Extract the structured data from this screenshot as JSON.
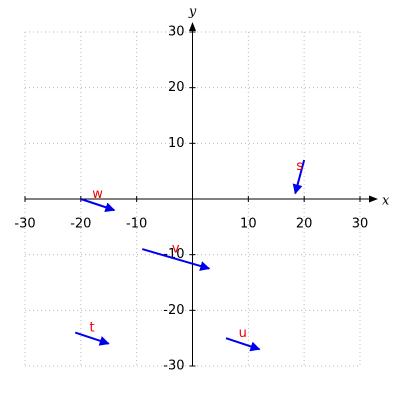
{
  "chart_data": {
    "type": "vector",
    "x_label": "x",
    "y_label": "y",
    "xlim": [
      -30,
      30
    ],
    "ylim": [
      -30,
      30
    ],
    "xticks": [
      -30,
      -20,
      -10,
      10,
      20,
      30
    ],
    "yticks": [
      -30,
      -20,
      -10,
      10,
      20,
      30
    ],
    "grid": true,
    "color": "#0000ee",
    "label_color": "#ee0000",
    "vectors": [
      {
        "label": "s",
        "x0": 20,
        "y0": 7,
        "x1": 18.4,
        "y1": 1
      },
      {
        "label": "w",
        "x0": -20,
        "y0": 0,
        "x1": -14,
        "y1": -2
      },
      {
        "label": "v",
        "x0": -9,
        "y0": -9,
        "x1": 3,
        "y1": -12.5
      },
      {
        "label": "t",
        "x0": -21,
        "y0": -24,
        "x1": -15,
        "y1": -26
      },
      {
        "label": "u",
        "x0": 6,
        "y0": -25,
        "x1": 12,
        "y1": -27
      }
    ]
  }
}
